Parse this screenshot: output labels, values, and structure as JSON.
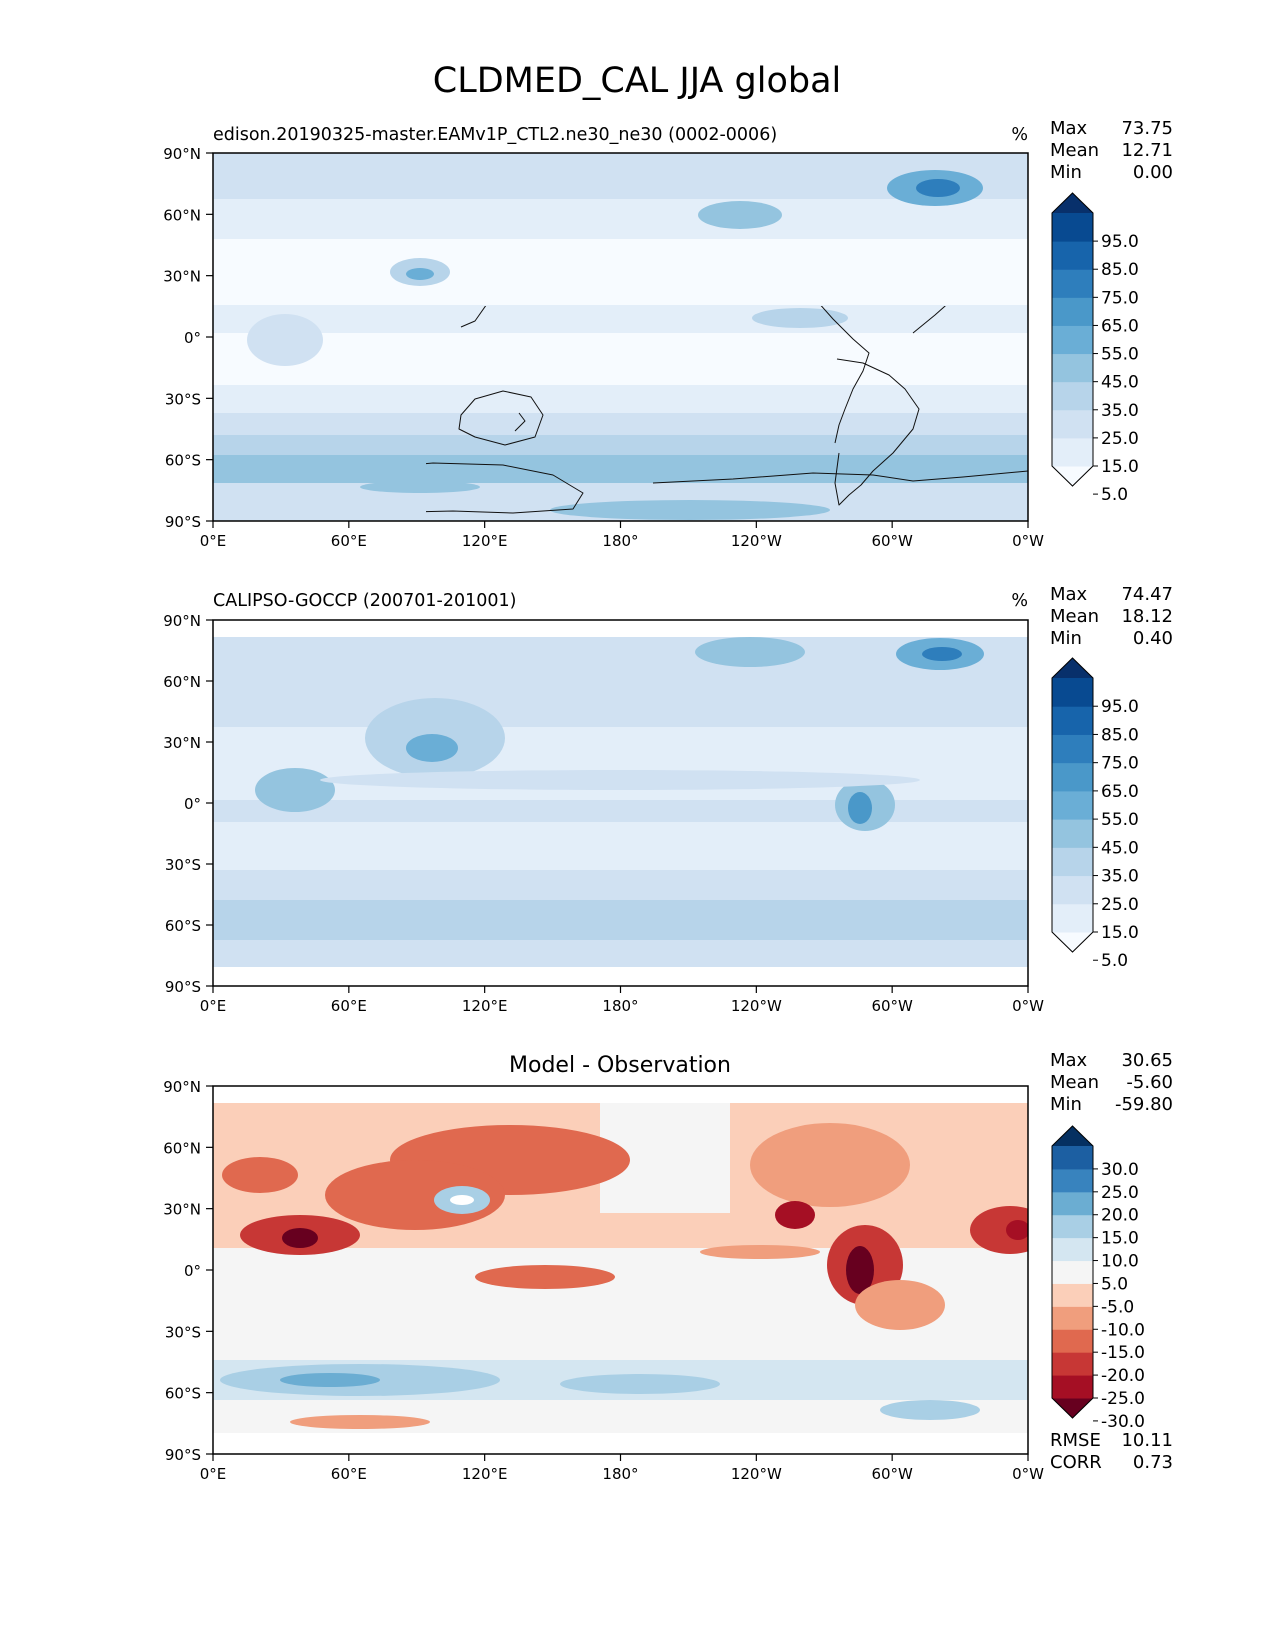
{
  "figure": {
    "title": "CLDMED_CAL JJA global"
  },
  "chart_data": [
    {
      "type": "heatmap",
      "subtitle": "edison.20190325-master.EAMv1P_CTL2.ne30_ne30 (0002-0006)",
      "units": "%",
      "stats": [
        {
          "label": "Max",
          "value": "73.75"
        },
        {
          "label": "Mean",
          "value": "12.71"
        },
        {
          "label": "Min",
          "value": "0.00"
        }
      ],
      "colorbar": {
        "ticks": [
          "95.0",
          "85.0",
          "75.0",
          "65.0",
          "55.0",
          "45.0",
          "35.0",
          "25.0",
          "15.0",
          "5.0"
        ],
        "colors": [
          "#f7fbff",
          "#e3eef9",
          "#d0e1f2",
          "#b7d4ea",
          "#94c4df",
          "#6aaed6",
          "#4a98c9",
          "#2e7ebc",
          "#1764ab",
          "#084a91",
          "#08306b"
        ]
      },
      "xticks": [
        "0°E",
        "60°E",
        "120°E",
        "180°",
        "120°W",
        "60°W",
        "0°W"
      ],
      "yticks": [
        "90°N",
        "60°N",
        "30°N",
        "0°",
        "30°S",
        "60°S",
        "90°S"
      ],
      "extra_stats": []
    },
    {
      "type": "heatmap",
      "subtitle": "CALIPSO-GOCCP (200701-201001)",
      "units": "%",
      "stats": [
        {
          "label": "Max",
          "value": "74.47"
        },
        {
          "label": "Mean",
          "value": "18.12"
        },
        {
          "label": "Min",
          "value": "0.40"
        }
      ],
      "colorbar": {
        "ticks": [
          "95.0",
          "85.0",
          "75.0",
          "65.0",
          "55.0",
          "45.0",
          "35.0",
          "25.0",
          "15.0",
          "5.0"
        ],
        "colors": [
          "#f7fbff",
          "#e3eef9",
          "#d0e1f2",
          "#b7d4ea",
          "#94c4df",
          "#6aaed6",
          "#4a98c9",
          "#2e7ebc",
          "#1764ab",
          "#084a91",
          "#08306b"
        ]
      },
      "xticks": [
        "0°E",
        "60°E",
        "120°E",
        "180°",
        "120°W",
        "60°W",
        "0°W"
      ],
      "yticks": [
        "90°N",
        "60°N",
        "30°N",
        "0°",
        "30°S",
        "60°S",
        "90°S"
      ],
      "extra_stats": []
    },
    {
      "type": "heatmap",
      "title": "Model - Observation",
      "units": "",
      "stats": [
        {
          "label": "Max",
          "value": "30.65"
        },
        {
          "label": "Mean",
          "value": "-5.60"
        },
        {
          "label": "Min",
          "value": "-59.80"
        }
      ],
      "colorbar": {
        "ticks": [
          "30.0",
          "25.0",
          "20.0",
          "15.0",
          "10.0",
          "5.0",
          "-5.0",
          "-10.0",
          "-15.0",
          "-20.0",
          "-25.0",
          "-30.0"
        ],
        "colors": [
          "#67001f",
          "#a50f24",
          "#c73735",
          "#e0694f",
          "#f09e7d",
          "#fbcfb9",
          "#f5f5f5",
          "#d4e6f1",
          "#a9cfe5",
          "#6badd2",
          "#3883be",
          "#1c5fa2",
          "#053061"
        ]
      },
      "xticks": [
        "0°E",
        "60°E",
        "120°E",
        "180°",
        "120°W",
        "60°W",
        "0°W"
      ],
      "yticks": [
        "90°N",
        "60°N",
        "30°N",
        "0°",
        "30°S",
        "60°S",
        "90°S"
      ],
      "extra_stats": [
        {
          "label": "RMSE",
          "value": "10.11"
        },
        {
          "label": "CORR",
          "value": "0.73"
        }
      ]
    }
  ]
}
